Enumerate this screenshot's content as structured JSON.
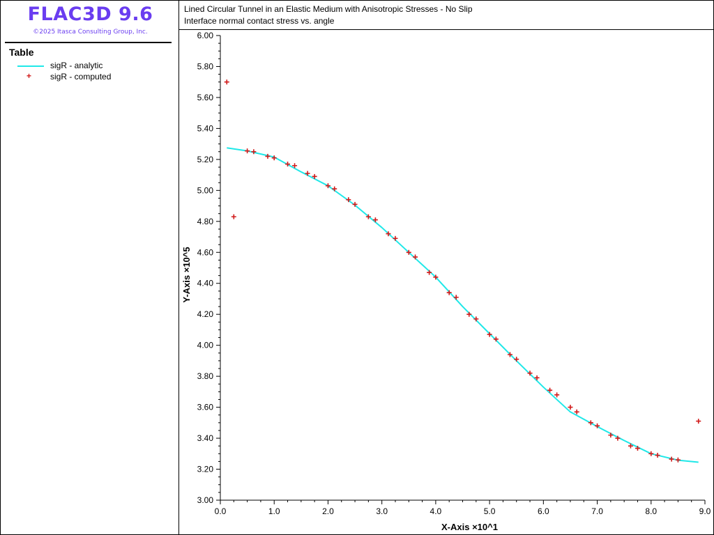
{
  "app": {
    "name": "FLAC3D 9.6",
    "copyright": "©2025 Itasca Consulting Group, Inc."
  },
  "legend": {
    "heading": "Table",
    "items": [
      {
        "label": "sigR - analytic",
        "style": "line",
        "color": "#1fe8e8"
      },
      {
        "label": "sigR - computed",
        "style": "plus",
        "color": "#d11a1a"
      }
    ]
  },
  "chart_data": {
    "type": "line",
    "title": "Lined Circular Tunnel in an Elastic Medium with Anisotropic Stresses - No Slip",
    "subtitle": "Interface normal contact stress vs. angle",
    "xlabel": "X-Axis ×10^1",
    "ylabel": "Y-Axis ×10^5",
    "xlim": [
      0,
      9
    ],
    "ylim": [
      3.0,
      6.0
    ],
    "x_ticks": [
      "0.0",
      "1.0",
      "2.0",
      "3.0",
      "4.0",
      "5.0",
      "6.0",
      "7.0",
      "8.0",
      "9.0"
    ],
    "y_ticks": [
      "3.00",
      "3.20",
      "3.40",
      "3.60",
      "3.80",
      "4.00",
      "4.20",
      "4.40",
      "4.60",
      "4.80",
      "5.00",
      "5.20",
      "5.40",
      "5.60",
      "5.80",
      "6.00"
    ],
    "grid": false,
    "series": [
      {
        "name": "sigR - analytic",
        "type": "line",
        "color": "#1fe8e8",
        "x": [
          0.12,
          0.5,
          1.0,
          1.5,
          2.0,
          2.5,
          3.0,
          3.5,
          4.0,
          4.5,
          5.0,
          5.5,
          6.0,
          6.5,
          7.0,
          7.5,
          8.0,
          8.5,
          8.88
        ],
        "y": [
          5.275,
          5.255,
          5.215,
          5.12,
          5.03,
          4.905,
          4.76,
          4.6,
          4.44,
          4.25,
          4.075,
          3.9,
          3.73,
          3.57,
          3.475,
          3.385,
          3.3,
          3.258,
          3.245
        ]
      },
      {
        "name": "sigR - computed",
        "type": "scatter",
        "marker": "plus",
        "color": "#d11a1a",
        "x": [
          0.12,
          0.25,
          0.5,
          0.62,
          0.88,
          1.0,
          1.25,
          1.38,
          1.62,
          1.75,
          2.0,
          2.12,
          2.38,
          2.5,
          2.75,
          2.88,
          3.12,
          3.25,
          3.5,
          3.62,
          3.88,
          4.0,
          4.25,
          4.38,
          4.62,
          4.75,
          5.0,
          5.12,
          5.38,
          5.5,
          5.75,
          5.88,
          6.12,
          6.25,
          6.5,
          6.62,
          6.88,
          7.0,
          7.25,
          7.38,
          7.62,
          7.75,
          8.0,
          8.12,
          8.38,
          8.5,
          8.88
        ],
        "y": [
          5.7,
          4.83,
          5.255,
          5.25,
          5.22,
          5.21,
          5.17,
          5.16,
          5.11,
          5.09,
          5.03,
          5.01,
          4.94,
          4.91,
          4.83,
          4.81,
          4.72,
          4.69,
          4.6,
          4.57,
          4.47,
          4.44,
          4.34,
          4.31,
          4.2,
          4.17,
          4.07,
          4.04,
          3.94,
          3.91,
          3.82,
          3.79,
          3.71,
          3.68,
          3.6,
          3.57,
          3.5,
          3.48,
          3.42,
          3.4,
          3.35,
          3.335,
          3.3,
          3.29,
          3.265,
          3.26,
          3.51
        ]
      }
    ]
  }
}
